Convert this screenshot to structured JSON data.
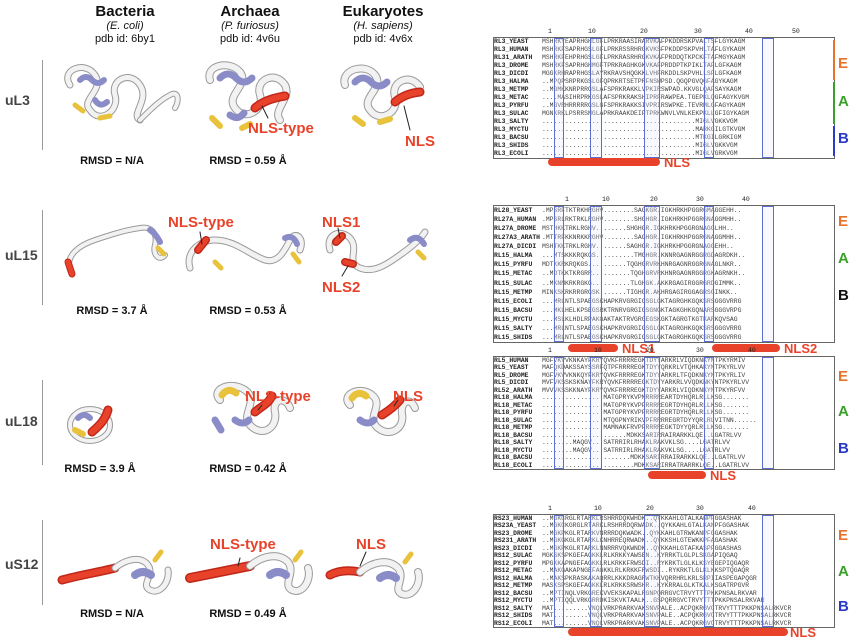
{
  "columns": [
    {
      "title": "Bacteria",
      "species": "(E. coli)",
      "pdb": "pdb id: 6by1"
    },
    {
      "title": "Archaea",
      "species": "(P. furiosus)",
      "pdb": "pdb id: 4v6u"
    },
    {
      "title": "Eukaryotes",
      "species": "(H. sapiens)",
      "pdb": "pdb id: 4v6x"
    }
  ],
  "rows": [
    {
      "label": "uL3",
      "rmsd": [
        "RMSD = N/A",
        "RMSD = 0.59 Å"
      ],
      "nls_archaea": "NLS-type",
      "nls_euk": "NLS",
      "alignment_names": [
        "RL3_YEAST",
        "RL3_HUMAN",
        "RL31_ARATH",
        "RL3_DROME",
        "RL3_DICDI",
        "RL3_HALMA",
        "RL3_METMP",
        "RL3_METAC",
        "RL3_PYRFU",
        "RL3_SULAC",
        "RL3_SALTY",
        "RL3_MYCTU",
        "RL3_BACSU",
        "RL3_SHIDS",
        "RL3_ECOLI"
      ],
      "seq_samples": [
        "MSHRKYEAPRHGHLGFLPRKRAASIRARVKAFPKDDRSKPVALTSFLGYKAGM",
        "MSHRKFSAPRHGSLGFLPRKRSSRHRGKVKSFPKDDPSKPVHLTAFLGYKAGM",
        "MSHRKFEHPRHGSLGFLPRKRASRHRGKVKAFPRDDQTKPCKFTAFMGYKAGM",
        "MSHRKFSAPRHGHMGFTPRKRAGHKGKVKAFPRDDPTKPIKLTAFLGFKAGM",
        "MGGKRHRAPRHGSLAYRKRAVSHQGKKLVHFRKDDLSKPVHLLSFLGFKAGM",
        "..MPQPSRPRKGSLGFQPRKRTSETPRFNSWPSD.QGQPGVQGFAGYKAGM",
        "..MGMKKNRPRRGSLAFSPRKRAKKLVPKIRSWPAD.KKVGLQAFSAYKAGM",
        "....MASIHRPRKGSLAFSPRKRAKSHIPRFRAWPEA.TGEPKLQGFAGYKVGM",
        "..MGVRHRRRRRGSLGFSPRKRAKKSIVPRIRSWPKE.TEVRMLGFAGYKAGM",
        "MGNKRKLPSRRSMGLAPRKRAAKDEIPTPRKWNVLVNLKEKPKLLGFIGYKAGM",
        "........................................MIGLVGKKVGM",
        "........................................MARKGILGTKVGM",
        "........................................MTKGILGRKIGM",
        "........................................MIGLVGKKVGM",
        "........................................MIGLVGRKVGM"
      ],
      "ruler": [
        "1",
        "10",
        "20",
        "30",
        "40",
        "50"
      ],
      "nls_labels": [
        "NLS"
      ],
      "domains": [
        "E",
        "A",
        "B"
      ]
    },
    {
      "label": "uL15",
      "rmsd": [
        "RMSD = 3.7 Å",
        "RMSD = 0.53 Å"
      ],
      "nls_archaea": "NLS-type",
      "nls_euk1": "NLS1",
      "nls_euk2": "NLS2",
      "alignment_names": [
        "RL28_YEAST",
        "RL27A_HUMAN",
        "RL27A_DROME",
        "RL27A3_ARATH",
        "RL27A_DICDI",
        "RL15_HALMA",
        "RL15_PYRFU",
        "RL15_METAC",
        "RL15_SULAC",
        "RL15_METMP",
        "RL15_ECOLI",
        "RL15_BACSU",
        "RL15_MYCTU",
        "RL15_SALTY",
        "RL15_SHIDS"
      ],
      "seq_samples": [
        ".MPSRFTKTRKHRGHV........SAGKGR.IGKHRKHPGGRGMAGGEHH..",
        ".MPSRLRKTRKLRGHV........SHGHGR.IGKHRKHPGGRGNAGGMHH..",
        "MSTHKKTRKLRGHV........SHGHGR.IGKHRKHPGGRGNAGGLHH..",
        ".MTTRFKKNRKKRGHV........SAGHGR.IGKHRKHPGGRGNAGGMHH..",
        "MSHTKKTRKLRGHV........SAGHGR.IGKHRKHPGGRGNAGGEHH..",
        "...MTSKKKRQKGS..........TMGHGR.KNNRGAGNRGGRGDAGRDKH..",
        "MDTKKRKRQKGS..........TQGHGRVRKHNRGAGNRGGRGNAGLNKR..",
        "..MDTKKTKRGRR..........TQGHGRVRKHNRGAGNRGGRGKAGRNKH..",
        "..MKNNKRKRGKG..........TLGHGK.AKKRGAGIRGGRGRDGIMMK..",
        "MINKSKRKRRGRGSK.......TIGHGR.AKHRGAGIRGGAGRSGINKK..",
        "...MRLNTLSPAEGSKHAPKRVGRGIGSGLGKTAGRGHKGQKSRSGGGVRRG",
        "...MKLHELKPSEGSRKTRNRVGRGIGSGNGKTAGKGHKGQNARSGGGVRPG",
        "...MSLKLHDLRPAKGAKTAKTRVGRGEGSKGKTAGRGTKGTKARKQVSAG",
        "...MRLNTLSPAEGSKHAPKRVGRGIGSGLGKTAGRGHKGQKSRSGGGVRRG",
        "...MRLNTLSPAEGSKHAPKRVGRGIGSGLGKTAGRGHKGQKSRSGGGVRRG"
      ],
      "ruler": [
        "1",
        "10",
        "20",
        "30",
        "40"
      ],
      "nls_labels": [
        "NLS1",
        "NLS2"
      ],
      "domains": [
        "E",
        "A",
        "B"
      ]
    },
    {
      "label": "uL18",
      "rmsd": [
        "RMSD = 3.9 Å",
        "RMSD = 0.42 Å"
      ],
      "nls_archaea": "NLS-type",
      "nls_euk": "NLS",
      "alignment_names": [
        "RL5_HUMAN",
        "RL5_YEAST",
        "RL5_DROME",
        "RL5_DICDI",
        "RL52_ARATH",
        "RL18_HALMA",
        "RL18_METAC",
        "RL18_PYRFU",
        "RL18_SULAC",
        "RL18_METMP",
        "RL18_BACSU",
        "RL18_SALTY",
        "RL18_MYCTU",
        "RL18_BACSU",
        "RL18_ECOLI"
      ],
      "seq_samples": [
        "MGFVKVVKNKAYFKRYQVKFRRRREGKTDYYARKRLVIQDKNKYNTPKYRMIV",
        "MAFQKDAKSSAYSSRFQTPFRRRREGKTDYYQRKRLVTQHKAKYNTPKYRLVV",
        "MGFVKVVKNKQYFKRYQVKFRRRREGKTDYYARKRLTFQDKNKYNTPKYRLIV",
        "MVFVKSSKSKNAYFKRYQVKFRRRREGKTDYYARKRLVVQDKNKYNTPKYRLVV",
        "MVVVKSSKKNAYFKRYQVKFRRRREGKTDYYARKRLVIQDKNKYNTPKYRFVV",
        "................MATGPRYKVPMRRRREARTDYHQRLRLLKSG.......",
        "................MATGPRYKVPFRRRREGRTDYHQRLRLLKSG.......",
        "................MATGPRYKVPFRRRREGRTDYHQRLRLLKSG.......",
        "................MTQGPNYRIKVPFRRRREGRTDYYQRLRLVITNN......",
        "................MAMNAKFRVPFRRRREGKTDYYQRLRLLKSG.......",
        "......................MDKKSARIRRAIRARKKLQE..LGATRLVV",
        "........MAQGV...SATRRIRLRHAKLRAKVKLSG....LGATRLVV",
        "........MAQGV...SATRRIRLRHAKLRAKVKLSG....LGATRLVV",
        ".......................MDKKSARIRRAIRARKKLQE..LGATRLVV",
        "........................MDKKSARIRRATRARRKLQE..LGATRLVV"
      ],
      "ruler": [
        "1",
        "10",
        "20",
        "30",
        "40"
      ],
      "nls_labels": [
        "NLS"
      ],
      "domains": [
        "E",
        "A",
        "B"
      ]
    },
    {
      "label": "uS12",
      "rmsd": [
        "RMSD = N/A",
        "RMSD = 0.49 Å"
      ],
      "nls_archaea": "NLS-type",
      "nls_euk": "NLS",
      "alignment_names": [
        "RS23_HUMAN",
        "RS23A_YEAST",
        "RS23_DROME",
        "RS231_ARATH",
        "RS23_DICDI",
        "RS12_SULAC",
        "RS12_PYRFU",
        "RS12_METAC",
        "RS12_HALMA",
        "RS12_METMP",
        "RS12_BACSU",
        "RS12_MYCTU",
        "RS12_SALTY",
        "RS12_SHIDS",
        "RS12_ECOLI"
      ],
      "seq_samples": [
        "..MGKCRGLRTARKLRSHRRDQKWHDK..QYKKAHLGTALKANPFGGASHAK",
        "..MGKCKGRGLRTARKLRSHRRDQRWADK..QYKKAHLGTALKANPFGGASHAK",
        "..MGKPKGLRTARKVNRRRDQKWADK..QYKKAHLGTRWKANPFGGASHAK",
        "..MGKGKGLRTARKLKNHRREQRWADK..QYKKSHLGTEWKKPFAGASHAK",
        "..MGKPKGLRTARKLNNRRRVQKWNDK..QYKKAHLGTAFKASPFGGASHAS",
        "MGKSKSPKGEFAGKKLRLKRKKYAWSEN..KYRRKTLGLPLSKGAPIQGAQ",
        "MPGKKAPNGEFAGKKLRLKRKKFRWSDI..RYKRKTLGLKLKSYEGEPIQGAQR",
        "..MAKGAKAPNGEFAGKKLRLKRKKFRWSDI..RYKRKTLGLKLKKSPTQGAQR",
        "..MAKSPKRASKAKAQRRLKKKDRAGRWTKKVQRRHRLKRLSRPIIASPEGAPQGR",
        "MASKSPSKGEFAGKKLRLKRKKSRWSHR..KYKRRALGLKTKALKSGATRPGVR",
        "..MPTINQLVRKGREKVVEKSKAPALRGNPQRRGVCTRVYTTTPKKPNSALRKVAR",
        "..MPTIQQLVRKGRRDKISKVKTAALK..GSPQRRGVCTRVYTTTPKKPNSALRKVAR",
        "MAT.........VNQLVRKPRARKVAKSNVPALE..ACPQKRGVCTRVYTTTPKKPNSALRKVCR",
        "MAT.........VNQLVRKPRARKVAKSNVPALE..ACPQKRGVCTRVYTTTPKKPNSALRKVCR",
        "MAT.........VNQLVRKPRARKVAKSNVPALE..ACPQKRGVCTRVYTTTPKKPNSALRKVCR"
      ],
      "ruler": [
        "1",
        "10",
        "20",
        "30",
        "40"
      ],
      "nls_labels": [
        "NLS"
      ],
      "domains": [
        "E",
        "A",
        "B"
      ]
    }
  ],
  "colors": {
    "nls_red": "#e8432a",
    "E": "#e8722a",
    "A": "#3aa02a",
    "B": "#2a3ac8",
    "helix_blue": "#8a8cc8",
    "sheet_yellow": "#e8c23a"
  }
}
